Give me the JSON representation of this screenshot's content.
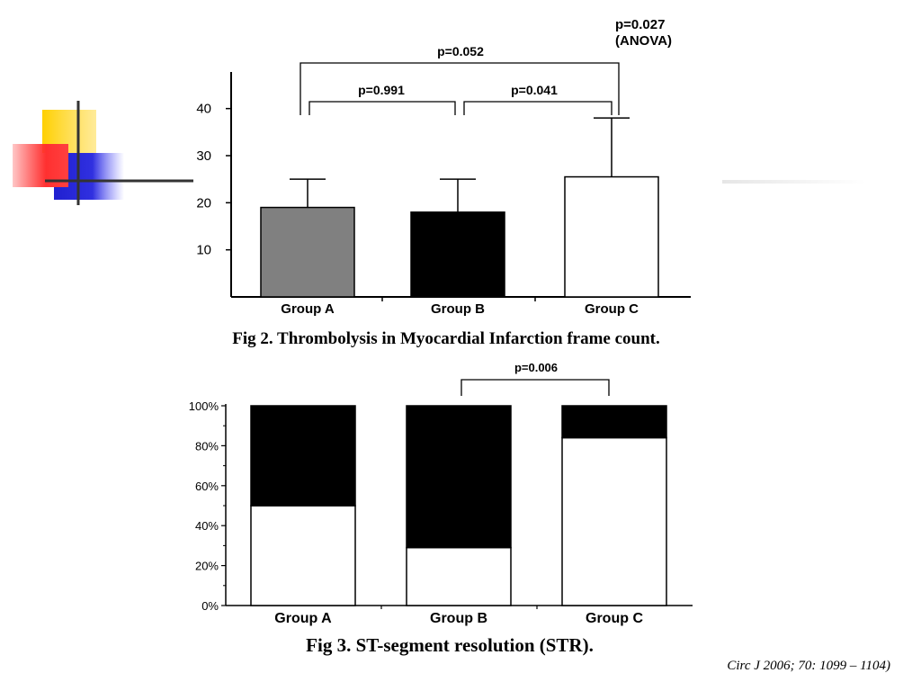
{
  "decor": {
    "colors": {
      "yellow": "#FFD000",
      "red": "#FF2020",
      "blue": "#2020D0",
      "line": "#333333"
    }
  },
  "fig2": {
    "caption": "Fig 2. Thrombolysis in Myocardial Infarction frame count.",
    "anova_line1": "p=0.027",
    "anova_line2": "(ANOVA)"
  },
  "fig3": {
    "caption": "Fig 3. ST-segment resolution (STR)."
  },
  "citation": "Circ J 2006; 70: 1099 – 1104)",
  "chart_data": [
    {
      "type": "bar",
      "title": "",
      "categories": [
        "Group A",
        "Group B",
        "Group C"
      ],
      "values": [
        19,
        18,
        25.5
      ],
      "error_upper": [
        25,
        25,
        38
      ],
      "colors": [
        "#808080",
        "#000000",
        "#ffffff"
      ],
      "ylim": [
        0,
        47
      ],
      "yticks": [
        10,
        20,
        30,
        40
      ],
      "xlabel": "",
      "ylabel": "",
      "grid": false,
      "comparisons": [
        {
          "from": 0,
          "to": 2,
          "label": "p=0.052"
        },
        {
          "from": 0,
          "to": 1,
          "label": "p=0.991"
        },
        {
          "from": 1,
          "to": 2,
          "label": "p=0.041"
        }
      ]
    },
    {
      "type": "bar",
      "stacked": true,
      "title": "",
      "categories": [
        "Group A",
        "Group B",
        "Group C"
      ],
      "series": [
        {
          "values": [
            50,
            29,
            84
          ],
          "color": "#ffffff"
        },
        {
          "values": [
            50,
            71,
            16
          ],
          "color": "#000000"
        }
      ],
      "ylim": [
        0,
        100
      ],
      "yticks": [
        "0%",
        "20%",
        "40%",
        "60%",
        "80%",
        "100%"
      ],
      "xlabel": "",
      "ylabel": "",
      "grid": false,
      "comparisons": [
        {
          "from": 1,
          "to": 2,
          "label": "p=0.006"
        }
      ]
    }
  ]
}
